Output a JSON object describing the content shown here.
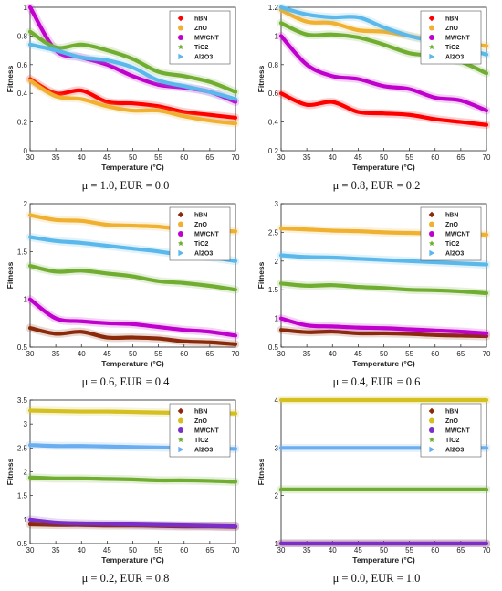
{
  "colors": {
    "hBN": "#ff0000",
    "ZnO": "#f0b030",
    "MWCNT": "#c000cc",
    "TiO2": "#70ad30",
    "Al2O3": "#5ab8ea",
    "hBN_dark": "#8b2a0a",
    "ZnO_gold": "#d4c020",
    "MWCNT_dark": "#7a30c8",
    "Al2O3_light": "#6aaef0"
  },
  "chart_data": [
    {
      "type": "line",
      "caption": "μ = 1.0, EUR = 0.0",
      "xlabel": "Temperature (°C)",
      "ylabel": "Fitness",
      "xlim": [
        30,
        70
      ],
      "ylim": [
        0,
        1
      ],
      "xticks": [
        "30",
        "35",
        "40",
        "45",
        "50",
        "55",
        "60",
        "65",
        "70"
      ],
      "yticks": [
        "0",
        "0.2",
        "0.4",
        "0.6",
        "0.8",
        "1"
      ],
      "legend_position": "top-right",
      "x": [
        30,
        35,
        40,
        45,
        50,
        55,
        60,
        65,
        70
      ],
      "series": [
        {
          "name": "hBN",
          "color_key": "hBN",
          "marker": "diamond",
          "values": [
            0.5,
            0.4,
            0.42,
            0.34,
            0.33,
            0.31,
            0.27,
            0.25,
            0.23
          ]
        },
        {
          "name": "ZnO",
          "color_key": "ZnO",
          "marker": "circle",
          "values": [
            0.49,
            0.38,
            0.36,
            0.31,
            0.28,
            0.28,
            0.24,
            0.21,
            0.19
          ]
        },
        {
          "name": "MWCNT",
          "color_key": "MWCNT",
          "marker": "circle",
          "values": [
            1.0,
            0.7,
            0.65,
            0.6,
            0.52,
            0.46,
            0.44,
            0.41,
            0.34
          ]
        },
        {
          "name": "TiO2",
          "color_key": "TiO2",
          "marker": "star",
          "values": [
            0.83,
            0.72,
            0.74,
            0.7,
            0.64,
            0.55,
            0.52,
            0.48,
            0.41
          ]
        },
        {
          "name": "Al2O3",
          "color_key": "Al2O3",
          "marker": "triangle",
          "values": [
            0.74,
            0.7,
            0.65,
            0.63,
            0.58,
            0.49,
            0.45,
            0.41,
            0.36
          ]
        }
      ]
    },
    {
      "type": "line",
      "caption": "μ = 0.8, EUR = 0.2",
      "xlabel": "Temperature (°C)",
      "ylabel": "Fitness",
      "xlim": [
        30,
        70
      ],
      "ylim": [
        0.2,
        1.2
      ],
      "xticks": [
        "30",
        "35",
        "40",
        "45",
        "50",
        "55",
        "60",
        "65",
        "70"
      ],
      "yticks": [
        "0.2",
        "0.4",
        "0.6",
        "0.8",
        "1",
        "1.2"
      ],
      "legend_position": "top-right",
      "x": [
        30,
        35,
        40,
        45,
        50,
        55,
        60,
        65,
        70
      ],
      "series": [
        {
          "name": "hBN",
          "color_key": "hBN",
          "marker": "diamond",
          "values": [
            0.6,
            0.52,
            0.54,
            0.47,
            0.46,
            0.45,
            0.42,
            0.4,
            0.38
          ]
        },
        {
          "name": "ZnO",
          "color_key": "ZnO",
          "marker": "circle",
          "values": [
            1.18,
            1.1,
            1.09,
            1.04,
            1.03,
            1.0,
            0.97,
            0.95,
            0.93
          ]
        },
        {
          "name": "MWCNT",
          "color_key": "MWCNT",
          "marker": "circle",
          "values": [
            1.0,
            0.8,
            0.72,
            0.7,
            0.65,
            0.63,
            0.57,
            0.55,
            0.48
          ]
        },
        {
          "name": "TiO2",
          "color_key": "TiO2",
          "marker": "star",
          "values": [
            1.09,
            1.01,
            1.01,
            0.99,
            0.94,
            0.88,
            0.86,
            0.82,
            0.74
          ]
        },
        {
          "name": "Al2O3",
          "color_key": "Al2O3",
          "marker": "triangle",
          "values": [
            1.2,
            1.15,
            1.13,
            1.13,
            1.06,
            1.0,
            0.96,
            0.92,
            0.87
          ]
        }
      ]
    },
    {
      "type": "line",
      "caption": "μ = 0.6, EUR = 0.4",
      "xlabel": "Temperature (°C)",
      "ylabel": "Fitness",
      "xlim": [
        30,
        70
      ],
      "ylim": [
        0.5,
        2
      ],
      "xticks": [
        "30",
        "35",
        "40",
        "45",
        "50",
        "55",
        "60",
        "65",
        "70"
      ],
      "yticks": [
        "0.5",
        "1",
        "1.5",
        "2"
      ],
      "legend_position": "top-right",
      "x": [
        30,
        35,
        40,
        45,
        50,
        55,
        60,
        65,
        70
      ],
      "series": [
        {
          "name": "hBN",
          "color_key": "hBN_dark",
          "marker": "diamond",
          "values": [
            0.7,
            0.64,
            0.66,
            0.6,
            0.6,
            0.59,
            0.56,
            0.55,
            0.53
          ]
        },
        {
          "name": "ZnO",
          "color_key": "ZnO",
          "marker": "circle",
          "values": [
            1.88,
            1.83,
            1.82,
            1.78,
            1.77,
            1.76,
            1.73,
            1.72,
            1.71
          ]
        },
        {
          "name": "MWCNT",
          "color_key": "MWCNT",
          "marker": "circle",
          "values": [
            1.0,
            0.8,
            0.77,
            0.75,
            0.74,
            0.71,
            0.68,
            0.66,
            0.62
          ]
        },
        {
          "name": "TiO2",
          "color_key": "TiO2",
          "marker": "star",
          "values": [
            1.35,
            1.29,
            1.3,
            1.27,
            1.24,
            1.19,
            1.17,
            1.14,
            1.1
          ]
        },
        {
          "name": "Al2O3",
          "color_key": "Al2O3",
          "marker": "triangle",
          "values": [
            1.65,
            1.61,
            1.59,
            1.56,
            1.53,
            1.5,
            1.46,
            1.44,
            1.4
          ]
        }
      ]
    },
    {
      "type": "line",
      "caption": "μ = 0.4, EUR = 0.6",
      "xlabel": "Temperature (°C)",
      "ylabel": "Fitness",
      "xlim": [
        30,
        70
      ],
      "ylim": [
        0.5,
        3
      ],
      "xticks": [
        "30",
        "35",
        "40",
        "45",
        "50",
        "55",
        "60",
        "65",
        "70"
      ],
      "yticks": [
        "0.5",
        "1",
        "1.5",
        "2",
        "2.5",
        "3"
      ],
      "legend_position": "top-right",
      "x": [
        30,
        35,
        40,
        45,
        50,
        55,
        60,
        65,
        70
      ],
      "series": [
        {
          "name": "hBN",
          "color_key": "hBN_dark",
          "marker": "diamond",
          "values": [
            0.8,
            0.76,
            0.77,
            0.74,
            0.74,
            0.73,
            0.71,
            0.7,
            0.69
          ]
        },
        {
          "name": "ZnO",
          "color_key": "ZnO",
          "marker": "circle",
          "values": [
            2.57,
            2.55,
            2.53,
            2.52,
            2.5,
            2.49,
            2.48,
            2.47,
            2.46
          ]
        },
        {
          "name": "MWCNT",
          "color_key": "MWCNT",
          "marker": "circle",
          "values": [
            1.0,
            0.88,
            0.86,
            0.84,
            0.83,
            0.81,
            0.79,
            0.77,
            0.74
          ]
        },
        {
          "name": "TiO2",
          "color_key": "TiO2",
          "marker": "star",
          "values": [
            1.61,
            1.57,
            1.58,
            1.55,
            1.53,
            1.5,
            1.49,
            1.47,
            1.44
          ]
        },
        {
          "name": "Al2O3",
          "color_key": "Al2O3",
          "marker": "triangle",
          "values": [
            2.1,
            2.07,
            2.06,
            2.04,
            2.02,
            2.0,
            1.98,
            1.96,
            1.94
          ]
        }
      ]
    },
    {
      "type": "line",
      "caption": "μ = 0.2, EUR = 0.8",
      "xlabel": "Temperature (°C)",
      "ylabel": "Fitness",
      "xlim": [
        30,
        70
      ],
      "ylim": [
        0.5,
        3.5
      ],
      "xticks": [
        "30",
        "35",
        "40",
        "45",
        "50",
        "55",
        "60",
        "65",
        "70"
      ],
      "yticks": [
        "0.5",
        "1",
        "1.5",
        "2",
        "2.5",
        "3",
        "3.5"
      ],
      "legend_position": "top-right",
      "x": [
        30,
        35,
        40,
        45,
        50,
        55,
        60,
        65,
        70
      ],
      "series": [
        {
          "name": "hBN",
          "color_key": "hBN_dark",
          "marker": "diamond",
          "values": [
            0.9,
            0.89,
            0.89,
            0.88,
            0.88,
            0.87,
            0.86,
            0.86,
            0.85
          ]
        },
        {
          "name": "ZnO",
          "color_key": "ZnO_gold",
          "marker": "circle",
          "values": [
            3.28,
            3.27,
            3.26,
            3.26,
            3.25,
            3.24,
            3.23,
            3.23,
            3.22
          ]
        },
        {
          "name": "MWCNT",
          "color_key": "MWCNT_dark",
          "marker": "circle",
          "values": [
            1.0,
            0.94,
            0.92,
            0.91,
            0.9,
            0.89,
            0.88,
            0.87,
            0.86
          ]
        },
        {
          "name": "TiO2",
          "color_key": "TiO2",
          "marker": "star",
          "values": [
            1.88,
            1.86,
            1.86,
            1.85,
            1.84,
            1.82,
            1.82,
            1.81,
            1.79
          ]
        },
        {
          "name": "Al2O3",
          "color_key": "Al2O3_light",
          "marker": "triangle",
          "values": [
            2.56,
            2.54,
            2.54,
            2.53,
            2.52,
            2.51,
            2.5,
            2.49,
            2.48
          ]
        }
      ]
    },
    {
      "type": "line",
      "caption": "μ = 0.0, EUR = 1.0",
      "xlabel": "Temperature (°C)",
      "ylabel": "Fitness",
      "xlim": [
        30,
        70
      ],
      "ylim": [
        1,
        4
      ],
      "xticks": [
        "30",
        "35",
        "40",
        "45",
        "50",
        "55",
        "60",
        "65",
        "70"
      ],
      "yticks": [
        "1",
        "2",
        "3",
        "4"
      ],
      "legend_position": "top-right",
      "x": [
        30,
        35,
        40,
        45,
        50,
        55,
        60,
        65,
        70
      ],
      "series": [
        {
          "name": "hBN",
          "color_key": "hBN_dark",
          "marker": "diamond",
          "values": [
            1.0,
            1.0,
            1.0,
            1.0,
            1.0,
            1.0,
            1.0,
            1.0,
            1.0
          ]
        },
        {
          "name": "ZnO",
          "color_key": "ZnO_gold",
          "marker": "circle",
          "values": [
            4.0,
            4.0,
            4.0,
            4.0,
            4.0,
            4.0,
            4.0,
            4.0,
            4.0
          ]
        },
        {
          "name": "MWCNT",
          "color_key": "MWCNT_dark",
          "marker": "circle",
          "values": [
            1.0,
            1.0,
            1.0,
            1.0,
            1.0,
            1.0,
            1.0,
            1.0,
            1.0
          ]
        },
        {
          "name": "TiO2",
          "color_key": "TiO2",
          "marker": "star",
          "values": [
            2.13,
            2.13,
            2.13,
            2.13,
            2.13,
            2.13,
            2.13,
            2.13,
            2.13
          ]
        },
        {
          "name": "Al2O3",
          "color_key": "Al2O3_light",
          "marker": "triangle",
          "values": [
            3.0,
            3.0,
            3.0,
            3.0,
            3.0,
            3.0,
            3.0,
            3.0,
            3.0
          ]
        }
      ]
    }
  ]
}
